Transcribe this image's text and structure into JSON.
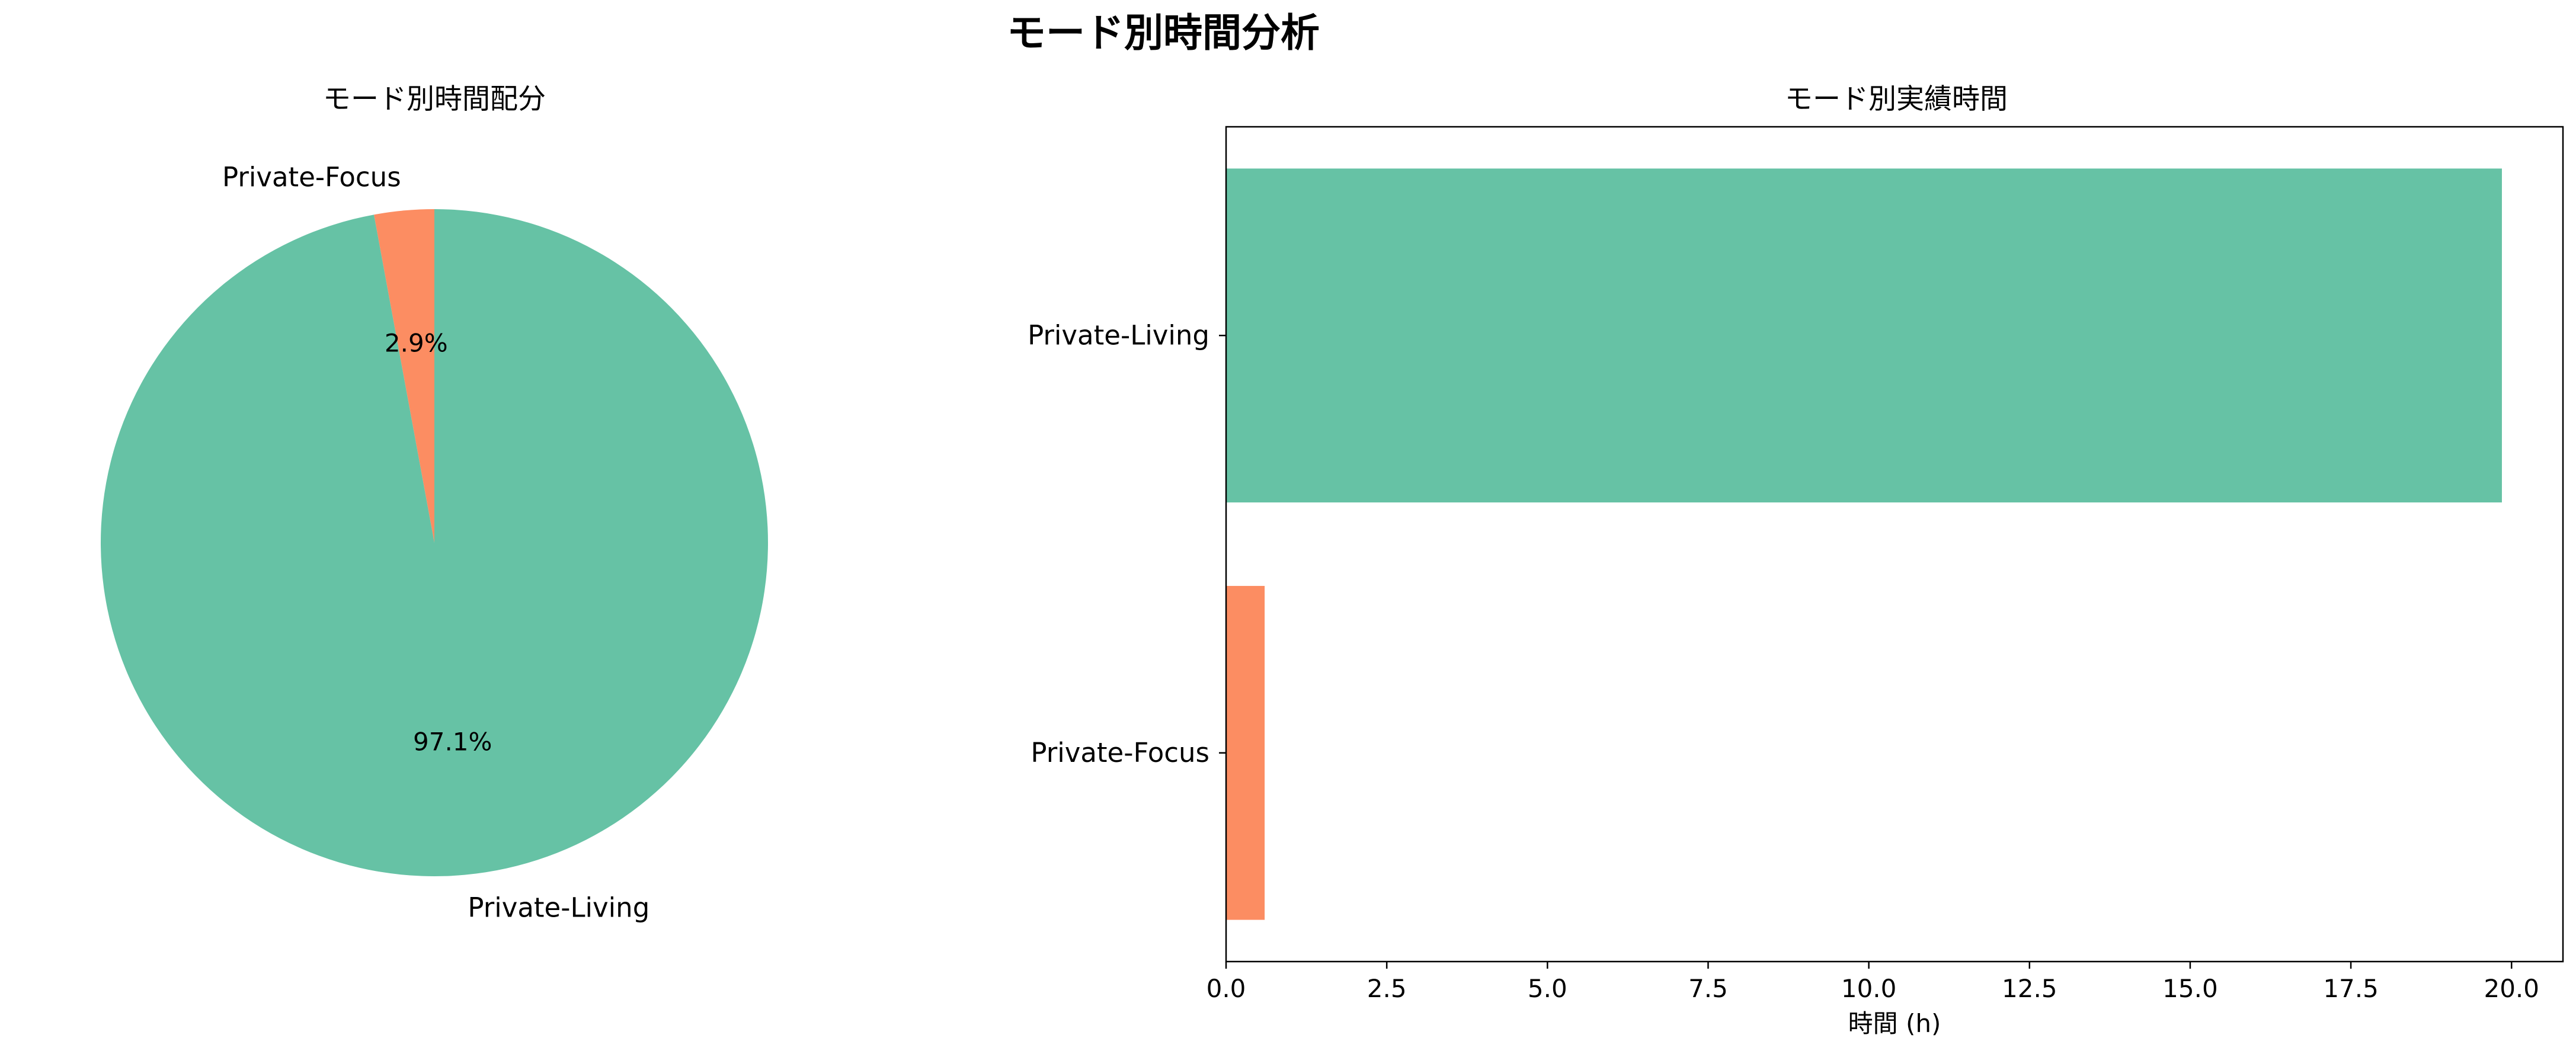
{
  "figure": {
    "title": "モード別時間分析"
  },
  "chart_data": [
    {
      "type": "pie",
      "title": "モード別時間配分",
      "labels": [
        "Private-Focus",
        "Private-Living"
      ],
      "values": [
        2.9,
        97.1
      ],
      "value_labels": [
        "2.9%",
        "97.1%"
      ],
      "colors": [
        "#fc8d62",
        "#66c2a5"
      ],
      "start_angle": 90,
      "direction": "counterclockwise"
    },
    {
      "type": "bar",
      "orientation": "horizontal",
      "title": "モード別実績時間",
      "categories": [
        "Private-Living",
        "Private-Focus"
      ],
      "values": [
        19.85,
        0.6
      ],
      "colors": [
        "#66c2a5",
        "#fc8d62"
      ],
      "xlabel": "時間 (h)",
      "ylabel": "",
      "xlim": [
        0,
        20.8
      ],
      "xticks": [
        0,
        2.5,
        5,
        7.5,
        10,
        12.5,
        15,
        17.5,
        20
      ],
      "xtick_labels": [
        "0.0",
        "2.5",
        "5.0",
        "7.5",
        "10.0",
        "12.5",
        "15.0",
        "17.5",
        "20.0"
      ],
      "grid": false
    }
  ]
}
